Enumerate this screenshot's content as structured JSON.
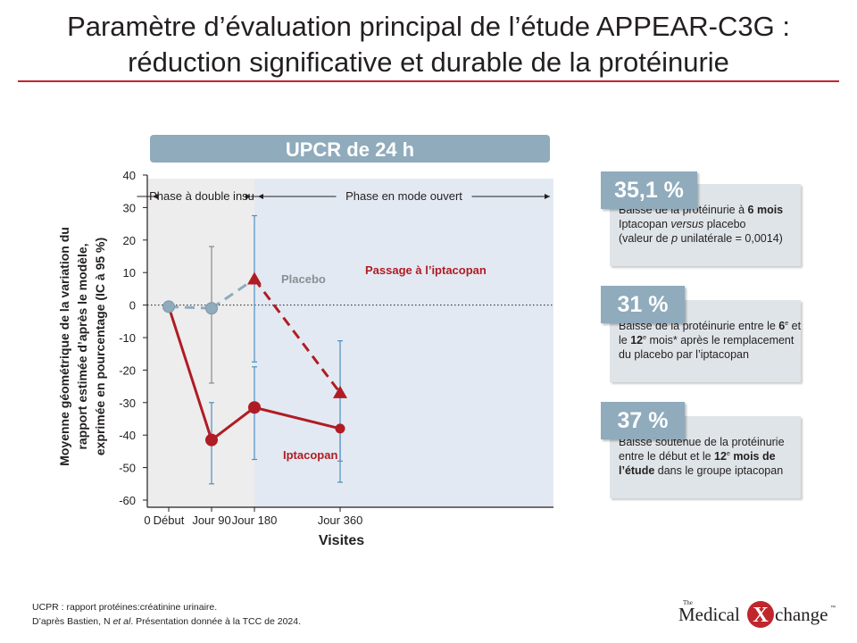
{
  "title": {
    "line1": "Paramètre d’évaluation principal de l’étude APPEAR-C3G :",
    "line2": "réduction significative et durable de la protéinurie"
  },
  "colors": {
    "accent_red": "#b01c24",
    "placebo_blue": "#8fabbc",
    "error_bar_blue": "#4e8fc0",
    "open_phase_bg": "#e3e9f2",
    "blind_phase_bg": "#ededed"
  },
  "chart_data": {
    "type": "line",
    "header": "UPCR de 24 h",
    "xlabel": "Visites",
    "ylabel": [
      "Moyenne géométrique de la variation du",
      "rapport estimée d’après le modèle,",
      "exprimée en pourcentage (IC à 95 %)"
    ],
    "x_origin_label": "0",
    "categories": [
      "Début",
      "Jour 90",
      "Jour 180",
      "Jour 360"
    ],
    "x_positions": [
      0.5,
      1.5,
      2.5,
      4.5
    ],
    "ylim": [
      -60,
      40
    ],
    "yticks": [
      40,
      30,
      20,
      10,
      0,
      -10,
      -20,
      -30,
      -40,
      -50,
      -60
    ],
    "phases": [
      {
        "label": "Phase à double insu"
      },
      {
        "label": "Phase en mode ouvert"
      }
    ],
    "series": [
      {
        "name": "Placebo",
        "color": "#8fabbc",
        "segments": [
          {
            "style": "dashed",
            "points": [
              [
                0.5,
                -0.5
              ],
              [
                1.5,
                -1.0
              ]
            ]
          },
          {
            "style": "dashed",
            "points": [
              [
                1.5,
                -1.0
              ],
              [
                2.5,
                8.0
              ]
            ]
          }
        ],
        "markers": [
          {
            "x": 0.5,
            "y": -0.5,
            "shape": "circle"
          },
          {
            "x": 1.5,
            "y": -1.0,
            "shape": "circle"
          }
        ],
        "error_bars": [
          {
            "x": 1.5,
            "low": -24,
            "high": 18
          }
        ]
      },
      {
        "name": "Iptacopan",
        "color": "#b01c24",
        "segments": [
          {
            "style": "solid",
            "points": [
              [
                0.5,
                -0.5
              ],
              [
                1.5,
                -41.5
              ],
              [
                2.5,
                -31.5
              ],
              [
                4.5,
                -38
              ]
            ]
          }
        ],
        "markers": [
          {
            "x": 1.5,
            "y": -41.5,
            "shape": "circle"
          },
          {
            "x": 2.5,
            "y": -31.5,
            "shape": "circle"
          },
          {
            "x": 4.5,
            "y": -38,
            "shape": "circle"
          }
        ],
        "error_bars": [
          {
            "x": 1.5,
            "low": -55,
            "high": -30
          },
          {
            "x": 2.5,
            "low": -47.5,
            "high": -19
          },
          {
            "x": 4.5,
            "low": -54.5,
            "high": -38
          }
        ]
      },
      {
        "name": "Passage à l’iptacopan",
        "color": "#b01c24",
        "segments": [
          {
            "style": "dashed",
            "points": [
              [
                2.5,
                8.0
              ],
              [
                4.5,
                -27
              ]
            ]
          }
        ],
        "markers": [
          {
            "x": 2.5,
            "y": 8.0,
            "shape": "triangle"
          },
          {
            "x": 4.5,
            "y": -27,
            "shape": "triangle"
          }
        ],
        "error_bars": [
          {
            "x": 2.5,
            "low": -17.5,
            "high": 27.5
          },
          {
            "x": 4.5,
            "low": -48,
            "high": -11
          }
        ]
      }
    ]
  },
  "cards": [
    {
      "value": "35,1 %",
      "lines": [
        [
          {
            "t": "Baisse de la protéinurie à "
          },
          {
            "t": "6 mois",
            "b": true
          }
        ],
        [
          {
            "t": "Iptacopan "
          },
          {
            "t": "versus",
            "i": true
          },
          {
            "t": " placebo"
          }
        ],
        [
          {
            "t": "(valeur de "
          },
          {
            "t": "p",
            "i": true
          },
          {
            "t": " unilatérale = 0,0014)"
          }
        ]
      ]
    },
    {
      "value": "31 %",
      "lines": [
        [
          {
            "t": "Baisse de la protéinurie entre le "
          },
          {
            "t": "6",
            "b": true
          },
          {
            "t": "e",
            "sup": true
          },
          {
            "t": " et"
          }
        ],
        [
          {
            "t": "le "
          },
          {
            "t": "12",
            "b": true
          },
          {
            "t": "e",
            "sup": true
          },
          {
            "t": " mois* après le remplacement"
          }
        ],
        [
          {
            "t": "du placebo par l’iptacopan"
          }
        ]
      ]
    },
    {
      "value": "37 %",
      "lines": [
        [
          {
            "t": "Baisse soutenue de la protéinurie"
          }
        ],
        [
          {
            "t": "entre le début et le "
          },
          {
            "t": "12",
            "b": true
          },
          {
            "t": "e",
            "sup": true
          },
          {
            "t": " mois de",
            "b": true
          }
        ],
        [
          {
            "t": "l’étude",
            "b": true
          },
          {
            "t": " dans le groupe iptacopan"
          }
        ]
      ]
    }
  ],
  "footnotes": [
    [
      {
        "t": "UCPR : rapport protéines:créatinine urinaire."
      }
    ],
    [
      {
        "t": "D’après Bastien, N "
      },
      {
        "t": "et al",
        "i": true
      },
      {
        "t": ". Présentation donnée à la TCC de 2024."
      }
    ]
  ],
  "logo": {
    "part1": "Medical",
    "sup": "The",
    "x": "X",
    "part2": "change",
    "tm": "™"
  }
}
